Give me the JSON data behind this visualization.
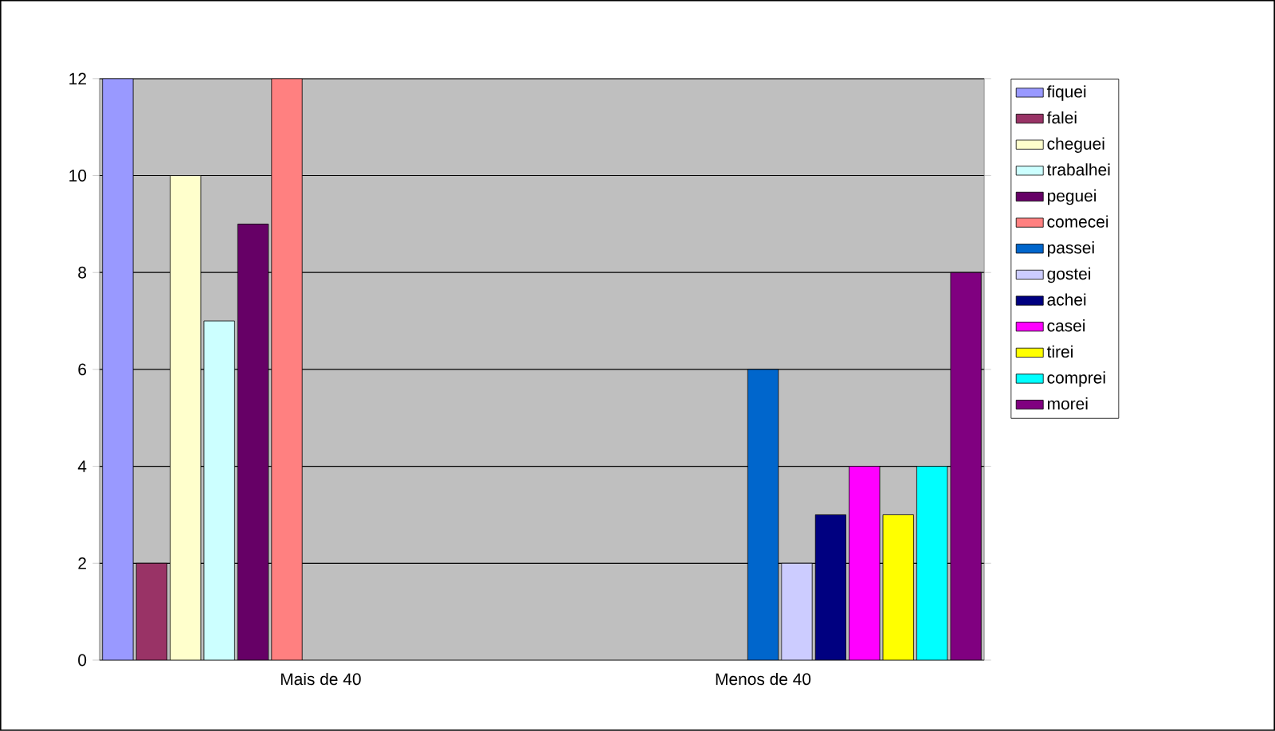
{
  "chart_data": {
    "type": "bar",
    "categories": [
      "Mais de 40",
      "Menos de 40"
    ],
    "series": [
      {
        "name": "fiquei",
        "color": "#9999ff",
        "values": [
          12,
          null
        ]
      },
      {
        "name": "falei",
        "color": "#993366",
        "values": [
          2,
          null
        ]
      },
      {
        "name": "cheguei",
        "color": "#ffffcc",
        "values": [
          10,
          null
        ]
      },
      {
        "name": "trabalhei",
        "color": "#ccffff",
        "values": [
          7,
          null
        ]
      },
      {
        "name": "peguei",
        "color": "#660066",
        "values": [
          9,
          null
        ]
      },
      {
        "name": "comecei",
        "color": "#ff8080",
        "values": [
          12,
          null
        ]
      },
      {
        "name": "passei",
        "color": "#0066cc",
        "values": [
          null,
          6
        ]
      },
      {
        "name": "gostei",
        "color": "#ccccff",
        "values": [
          null,
          2
        ]
      },
      {
        "name": "achei",
        "color": "#000080",
        "values": [
          null,
          3
        ]
      },
      {
        "name": "casei",
        "color": "#ff00ff",
        "values": [
          null,
          4
        ]
      },
      {
        "name": "tirei",
        "color": "#ffff00",
        "values": [
          null,
          3
        ]
      },
      {
        "name": "comprei",
        "color": "#00ffff",
        "values": [
          null,
          4
        ]
      },
      {
        "name": "morei",
        "color": "#800080",
        "values": [
          null,
          8
        ]
      }
    ],
    "ylim": [
      0,
      12
    ],
    "yticks": [
      0,
      2,
      4,
      6,
      8,
      10,
      12
    ],
    "grid": "y",
    "legend": "right"
  }
}
